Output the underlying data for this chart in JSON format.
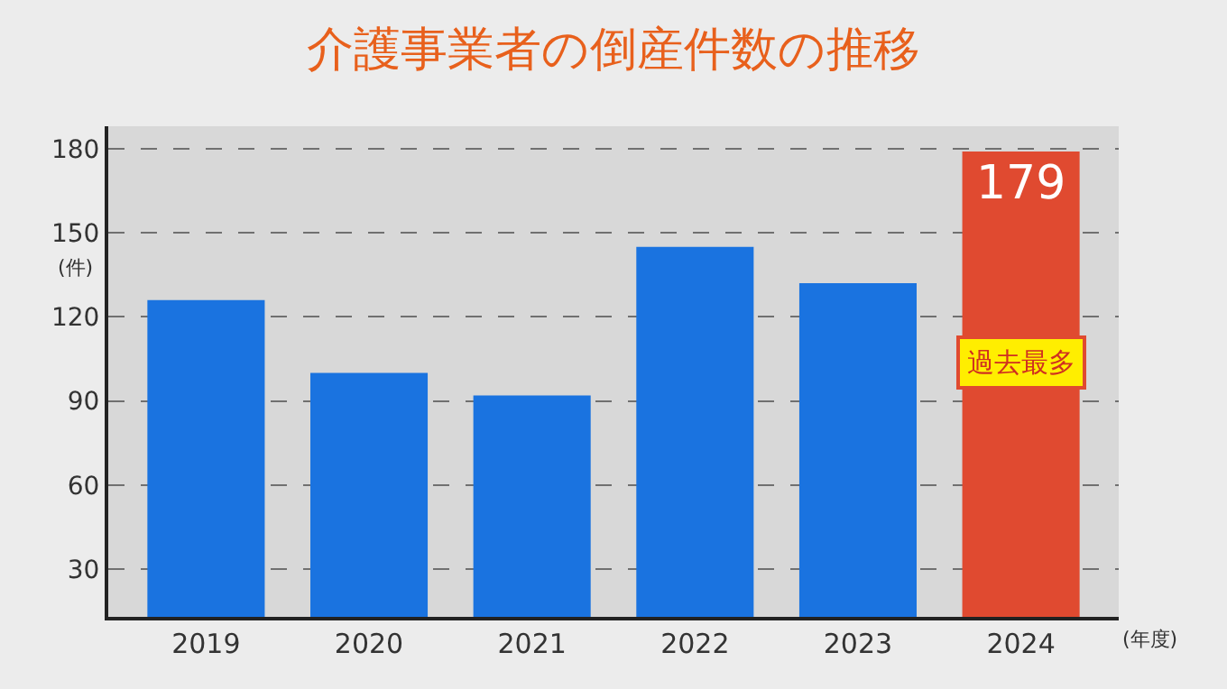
{
  "chart_data": {
    "type": "bar",
    "title": "介護事業者の倒産件数の推移",
    "categories": [
      "2019",
      "2020",
      "2021",
      "2022",
      "2023",
      "2024"
    ],
    "values": [
      126,
      100,
      92,
      145,
      132,
      179
    ],
    "colors": [
      "#1a73e0",
      "#1a73e0",
      "#1a73e0",
      "#1a73e0",
      "#1a73e0",
      "#e04a30"
    ],
    "value_labels": [
      null,
      null,
      null,
      null,
      null,
      "179"
    ],
    "ylabel": "(件)",
    "xlabel": "(年度)",
    "ylim": [
      13,
      188
    ],
    "yticks": [
      30,
      60,
      90,
      120,
      150,
      180
    ],
    "grid": "y",
    "line_style": "dashed",
    "annotations": [
      "過去最多"
    ]
  }
}
